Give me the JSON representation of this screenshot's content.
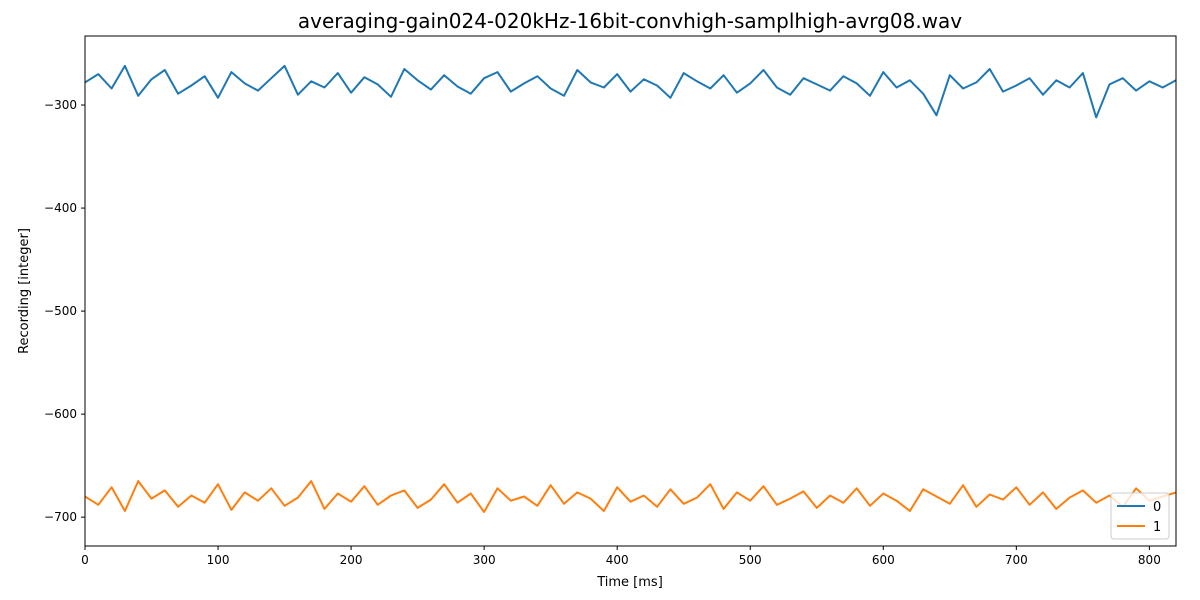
{
  "chart_data": {
    "type": "line",
    "title": "averaging-gain024-020kHz-16bit-convhigh-samplhigh-avrg08.wav",
    "xlabel": "Time [ms]",
    "ylabel": "Recording [integer]",
    "xlim": [
      0,
      820
    ],
    "ylim": [
      -728,
      -233
    ],
    "x_ticks": [
      0,
      100,
      200,
      300,
      400,
      500,
      600,
      700,
      800
    ],
    "x_tick_labels": [
      "0",
      "100",
      "200",
      "300",
      "400",
      "500",
      "600",
      "700",
      "800"
    ],
    "y_ticks": [
      -700,
      -600,
      -500,
      -400,
      -300
    ],
    "y_tick_labels": [
      "−700",
      "−600",
      "−500",
      "−400",
      "−300"
    ],
    "grid": false,
    "legend_position": "lower-right",
    "series": [
      {
        "name": "0",
        "color": "#1f77b4",
        "x": [
          0,
          10,
          20,
          30,
          40,
          50,
          60,
          70,
          80,
          90,
          100,
          110,
          120,
          130,
          140,
          150,
          160,
          170,
          180,
          190,
          200,
          210,
          220,
          230,
          240,
          250,
          260,
          270,
          280,
          290,
          300,
          310,
          320,
          330,
          340,
          350,
          360,
          370,
          380,
          390,
          400,
          410,
          420,
          430,
          440,
          450,
          460,
          470,
          480,
          490,
          500,
          510,
          520,
          530,
          540,
          550,
          560,
          570,
          580,
          590,
          600,
          610,
          620,
          630,
          640,
          650,
          660,
          670,
          680,
          690,
          700,
          710,
          720,
          730,
          740,
          750,
          760,
          770,
          780,
          790,
          800,
          810,
          820
        ],
        "values": [
          -278,
          -270,
          -284,
          -262,
          -291,
          -275,
          -266,
          -289,
          -281,
          -272,
          -293,
          -268,
          -279,
          -286,
          -274,
          -262,
          -290,
          -277,
          -283,
          -269,
          -288,
          -273,
          -280,
          -292,
          -265,
          -276,
          -285,
          -271,
          -282,
          -289,
          -274,
          -268,
          -287,
          -279,
          -272,
          -284,
          -291,
          -266,
          -278,
          -283,
          -270,
          -287,
          -275,
          -281,
          -293,
          -269,
          -277,
          -284,
          -271,
          -288,
          -279,
          -266,
          -283,
          -290,
          -274,
          -280,
          -286,
          -272,
          -279,
          -291,
          -268,
          -283,
          -276,
          -289,
          -310,
          -271,
          -284,
          -278,
          -265,
          -287,
          -281,
          -274,
          -290,
          -276,
          -283,
          -269,
          -312,
          -280,
          -274,
          -286,
          -277,
          -283,
          -276
        ]
      },
      {
        "name": "1",
        "color": "#ff7f0e",
        "x": [
          0,
          10,
          20,
          30,
          40,
          50,
          60,
          70,
          80,
          90,
          100,
          110,
          120,
          130,
          140,
          150,
          160,
          170,
          180,
          190,
          200,
          210,
          220,
          230,
          240,
          250,
          260,
          270,
          280,
          290,
          300,
          310,
          320,
          330,
          340,
          350,
          360,
          370,
          380,
          390,
          400,
          410,
          420,
          430,
          440,
          450,
          460,
          470,
          480,
          490,
          500,
          510,
          520,
          530,
          540,
          550,
          560,
          570,
          580,
          590,
          600,
          610,
          620,
          630,
          640,
          650,
          660,
          670,
          680,
          690,
          700,
          710,
          720,
          730,
          740,
          750,
          760,
          770,
          780,
          790,
          800,
          810,
          820
        ],
        "values": [
          -680,
          -688,
          -671,
          -694,
          -665,
          -682,
          -674,
          -690,
          -679,
          -686,
          -668,
          -693,
          -676,
          -684,
          -672,
          -689,
          -681,
          -665,
          -692,
          -677,
          -685,
          -670,
          -688,
          -679,
          -674,
          -691,
          -683,
          -668,
          -686,
          -677,
          -695,
          -672,
          -684,
          -680,
          -689,
          -669,
          -687,
          -676,
          -682,
          -694,
          -671,
          -685,
          -679,
          -690,
          -673,
          -687,
          -681,
          -668,
          -692,
          -676,
          -684,
          -670,
          -688,
          -682,
          -675,
          -691,
          -679,
          -686,
          -672,
          -689,
          -677,
          -684,
          -694,
          -673,
          -680,
          -687,
          -669,
          -690,
          -678,
          -683,
          -671,
          -688,
          -676,
          -692,
          -681,
          -674,
          -686,
          -679,
          -690,
          -672,
          -684,
          -680,
          -676
        ]
      }
    ]
  }
}
